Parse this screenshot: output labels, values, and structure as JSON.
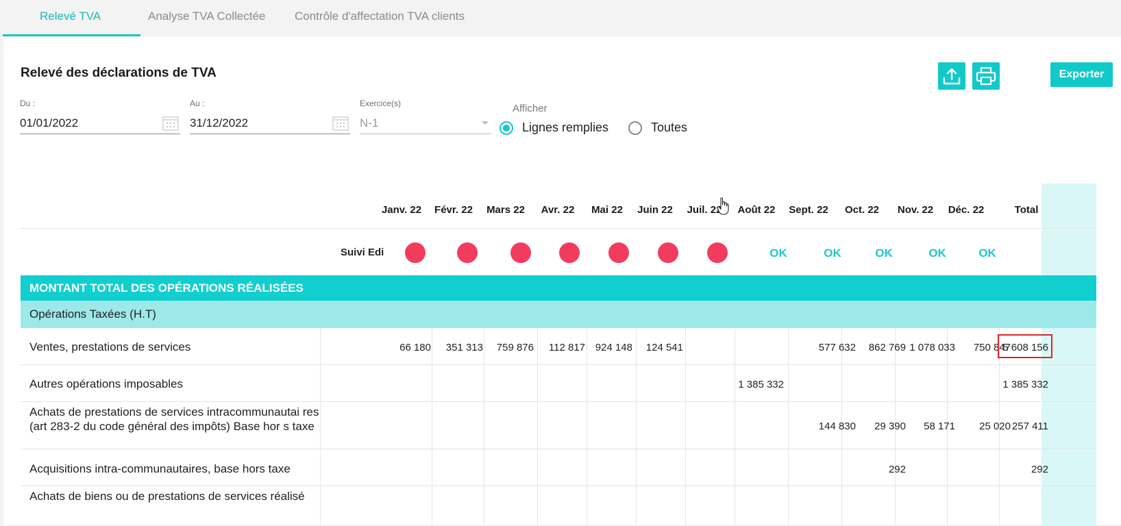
{
  "tabs": [
    {
      "label": "Relevé TVA",
      "active": true
    },
    {
      "label": "Analyse TVA Collectée",
      "active": false
    },
    {
      "label": "Contrôle d'affectation TVA clients",
      "active": false
    }
  ],
  "page_title": "Relevé des déclarations de TVA",
  "toolbar": {
    "upload_icon": "upload-icon",
    "print_icon": "printer-icon",
    "export_label": "Exporter",
    "accent_color": "#12c9c9"
  },
  "filters": {
    "du": {
      "label": "Du :",
      "value": "01/01/2022"
    },
    "au": {
      "label": "Au :",
      "value": "31/12/2022"
    },
    "exercice": {
      "label": "Exercice(s)",
      "value": "N-1"
    },
    "afficher": {
      "label": "Afficher",
      "options": [
        {
          "label": "Lignes remplies",
          "checked": true
        },
        {
          "label": "Toutes",
          "checked": false
        }
      ]
    }
  },
  "table": {
    "columns": [
      "Janv. 22",
      "Févr. 22",
      "Mars 22",
      "Avr. 22",
      "Mai 22",
      "Juin 22",
      "Juil. 22",
      "Août 22",
      "Sept. 22",
      "Oct. 22",
      "Nov. 22",
      "Déc. 22",
      "Total"
    ],
    "suivi_edi": {
      "label": "Suivi Edi",
      "statuses": [
        "error",
        "error",
        "error",
        "error",
        "error",
        "error",
        "error",
        "OK",
        "OK",
        "OK",
        "OK",
        "OK",
        ""
      ],
      "error_color": "#f23c5e"
    },
    "section_title": "MONTANT TOTAL DES OPÉRATIONS RÉALISÉES",
    "subsection_title": "Opérations Taxées (H.T)",
    "rows": [
      {
        "label": "Ventes, prestations de services",
        "values": [
          "66 180",
          "351 313",
          "759 876",
          "112 817",
          "924 148",
          "124 541",
          "",
          "",
          "577 632",
          "862 769",
          "1 078 033",
          "750 847",
          "5 608 156"
        ],
        "highlight_total": true
      },
      {
        "label": "Autres opérations imposables",
        "values": [
          "",
          "",
          "",
          "",
          "",
          "",
          "",
          "1 385 332",
          "",
          "",
          "",
          "",
          "1 385 332"
        ]
      },
      {
        "label": "Achats de prestations de services intracommunautai res (art 283-2 du code général des impôts) Base hor s taxe",
        "values": [
          "",
          "",
          "",
          "",
          "",
          "",
          "",
          "",
          "144 830",
          "29 390",
          "58 171",
          "25 020",
          "257 411"
        ]
      },
      {
        "label": "Acquisitions intra-communautaires, base hors taxe",
        "values": [
          "",
          "",
          "",
          "",
          "",
          "",
          "",
          "",
          "",
          "292",
          "",
          "",
          "292"
        ]
      },
      {
        "label": "Achats de biens ou de prestations de services réalisé",
        "values": [
          "",
          "",
          "",
          "",
          "",
          "",
          "",
          "",
          "",
          "",
          "",
          "",
          ""
        ]
      }
    ]
  }
}
